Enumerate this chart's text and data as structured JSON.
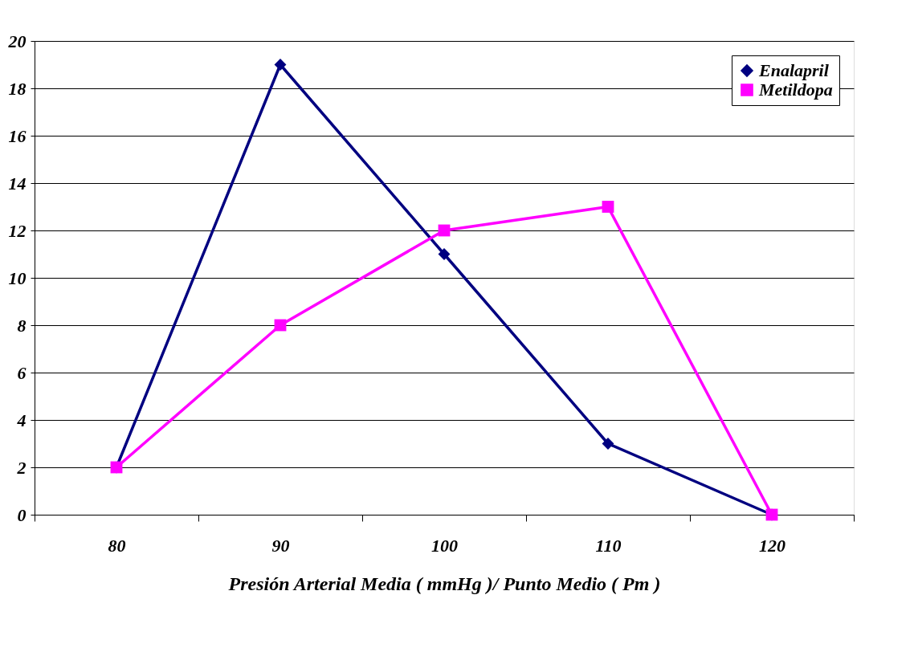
{
  "chart_data": {
    "type": "line",
    "xlabel": "Presión Arterial Media ( mmHg )/ Punto Medio ( Pm )",
    "categories": [
      "80",
      "90",
      "100",
      "110",
      "120"
    ],
    "series": [
      {
        "name": "Enalapril",
        "color": "#000080",
        "marker": "diamond",
        "values": [
          2,
          19,
          11,
          3,
          0
        ]
      },
      {
        "name": "Metildopa",
        "color": "#ff00ff",
        "marker": "square",
        "values": [
          2,
          8,
          12,
          13,
          0
        ]
      }
    ],
    "ylim": [
      0,
      20
    ],
    "yticks": [
      0,
      2,
      4,
      6,
      8,
      10,
      12,
      14,
      16,
      18,
      20
    ],
    "grid": "y",
    "legend": "top right",
    "line_style": "solid"
  }
}
